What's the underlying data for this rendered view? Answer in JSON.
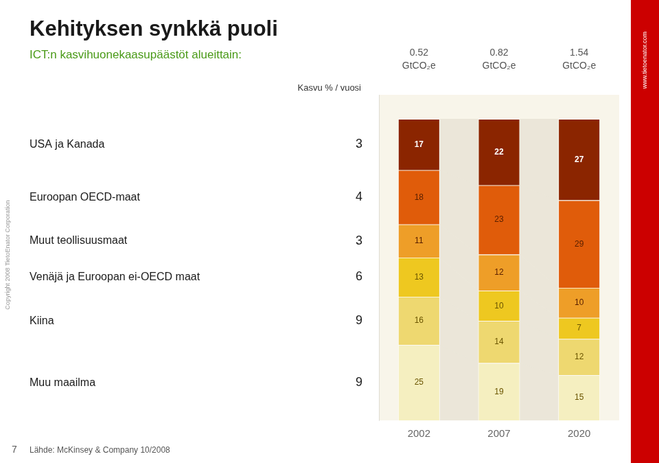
{
  "chart_data": {
    "type": "bar",
    "title": "Kehityksen synkkä puoli",
    "subtitle": "ICT:n kasvihuonekaasupäästöt alueittain:",
    "categories": [
      "2002",
      "2007",
      "2020"
    ],
    "series": [
      {
        "name": "Muu maailma",
        "color": "#F5EFC0",
        "values": [
          25,
          19,
          15
        ],
        "growth_rate": 9
      },
      {
        "name": "Kiina",
        "color": "#EED870",
        "values": [
          16,
          14,
          12
        ],
        "growth_rate": 9
      },
      {
        "name": "Venäjä ja Euroopan ei-OECD maat",
        "color": "#EEC820",
        "values": [
          13,
          10,
          7
        ],
        "growth_rate": 6
      },
      {
        "name": "Muut teollisuusmaat",
        "color": "#EE9E28",
        "values": [
          11,
          12,
          10
        ],
        "growth_rate": 3
      },
      {
        "name": "Euroopan OECD-maat",
        "color": "#E05C0A",
        "values": [
          18,
          23,
          29
        ],
        "growth_rate": 4
      },
      {
        "name": "USA ja Kanada",
        "color": "#8B2500",
        "values": [
          17,
          22,
          27
        ],
        "growth_rate": 3
      }
    ],
    "stacked": true,
    "data_labels": true,
    "ylim": [
      0,
      108
    ],
    "tick_labels": "x",
    "grid": false,
    "totals": [
      0.52,
      0.82,
      1.54
    ],
    "totals_unit": "GtCO₂e",
    "growth_label": "Kasvu % / vuosi",
    "footer": "Lähde: McKinsey & Company 10/2008",
    "copyright": "Copyright 2008 TietoEnator Corporation",
    "page_number": "7",
    "banner_text": "www.tietoenator.com"
  }
}
